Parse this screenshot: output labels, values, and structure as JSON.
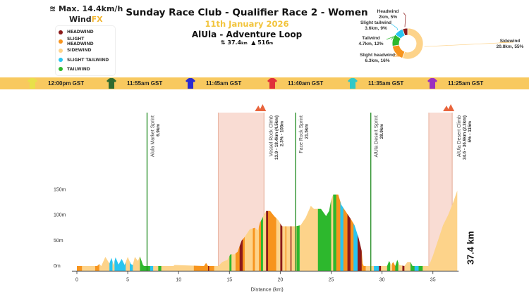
{
  "header": {
    "max_wind": "Max. 14.4km/h",
    "brand_main": "Wind",
    "brand_accent": "FX",
    "title": "Sunday Race Club - Qualifier Race 2 - Women",
    "date": "11th January 2026",
    "route": "AlUla - Adventure Loop",
    "distance": "37.4",
    "distance_unit": "km",
    "elevation": "516",
    "elevation_unit": "m"
  },
  "legend": [
    {
      "label": "HEADWIND",
      "color": "#8b1a1a"
    },
    {
      "label": "SLIGHT HEADWIND",
      "color": "#f7941d"
    },
    {
      "label": "SIDEWIND",
      "color": "#fdd38a"
    },
    {
      "label": "SLIGHT TAILWIND",
      "color": "#29c5f0"
    },
    {
      "label": "TAILWIND",
      "color": "#2db82d"
    }
  ],
  "jerseys": [
    {
      "time": "12:00pm GST",
      "color": "#e8e04a"
    },
    {
      "time": "11:55am GST",
      "color": "#2f6b2f"
    },
    {
      "time": "11:45am GST",
      "color": "#2a2ad0"
    },
    {
      "time": "11:40am GST",
      "color": "#e0303a"
    },
    {
      "time": "11:35am GST",
      "color": "#30c8c8"
    },
    {
      "time": "11:25am GST",
      "color": "#9a30c0"
    }
  ],
  "pie": {
    "type": "pie",
    "slices": [
      {
        "name": "Sidewind",
        "km": 20.8,
        "pct": 55,
        "label1": "Sidewind",
        "label2": "20.8km, 55%",
        "color": "#fdd38a"
      },
      {
        "name": "Slight headwind",
        "km": 6.3,
        "pct": 16,
        "label1": "Slight headwind",
        "label2": "6.3km, 16%",
        "color": "#f7941d"
      },
      {
        "name": "Tailwind",
        "km": 4.7,
        "pct": 12,
        "label1": "Tailwind",
        "label2": "4.7km, 12%",
        "color": "#2db82d"
      },
      {
        "name": "Slight tailwind",
        "km": 3.6,
        "pct": 9,
        "label1": "Slight tailwind",
        "label2": "3.6km, 9%",
        "color": "#29c5f0"
      },
      {
        "name": "Headwind",
        "km": 2,
        "pct": 5,
        "label1": "Headwind",
        "label2": "2km, 5%",
        "color": "#8b1a1a"
      }
    ]
  },
  "chart_data": {
    "type": "area",
    "xlabel": "Distance (km)",
    "xlim": [
      0,
      37.4
    ],
    "ylim": [
      -10,
      160
    ],
    "xticks": [
      "0",
      "5",
      "10",
      "15",
      "20",
      "25",
      "30",
      "35"
    ],
    "yticks": [
      "0m",
      "50m",
      "100m",
      "150m"
    ],
    "total_label": "37.4 km",
    "profile": [
      [
        0,
        0
      ],
      [
        2,
        0
      ],
      [
        2.2,
        4
      ],
      [
        2.4,
        0
      ],
      [
        2.8,
        18
      ],
      [
        3.2,
        5
      ],
      [
        3.4,
        16
      ],
      [
        3.6,
        2
      ],
      [
        3.8,
        17
      ],
      [
        4.1,
        3
      ],
      [
        4.4,
        14
      ],
      [
        4.7,
        2
      ],
      [
        5,
        18
      ],
      [
        5.3,
        4
      ],
      [
        5.5,
        2
      ],
      [
        5.7,
        18
      ],
      [
        6,
        10
      ],
      [
        6.2,
        19
      ],
      [
        6.5,
        2
      ],
      [
        6.6,
        0
      ],
      [
        9.5,
        0
      ],
      [
        9.6,
        2
      ],
      [
        12.5,
        0
      ],
      [
        12.7,
        6
      ],
      [
        12.9,
        0
      ],
      [
        13.9,
        0
      ],
      [
        14.3,
        8
      ],
      [
        14.8,
        12
      ],
      [
        15.1,
        23
      ],
      [
        15.5,
        23
      ],
      [
        15.8,
        28
      ],
      [
        16.2,
        50
      ],
      [
        16.5,
        57
      ],
      [
        17,
        72
      ],
      [
        17.5,
        75
      ],
      [
        17.8,
        70
      ],
      [
        18,
        85
      ],
      [
        18.4,
        100
      ],
      [
        18.6,
        108
      ],
      [
        19,
        108
      ],
      [
        19.4,
        98
      ],
      [
        19.8,
        90
      ],
      [
        20.1,
        80
      ],
      [
        20.2,
        78
      ],
      [
        21.5,
        78
      ],
      [
        22,
        80
      ],
      [
        22.5,
        95
      ],
      [
        23,
        118
      ],
      [
        23.3,
        112
      ],
      [
        24,
        112
      ],
      [
        24.5,
        98
      ],
      [
        24.8,
        108
      ],
      [
        25,
        130
      ],
      [
        25.2,
        140
      ],
      [
        25.7,
        140
      ],
      [
        26,
        120
      ],
      [
        26.5,
        105
      ],
      [
        27,
        90
      ],
      [
        27.3,
        80
      ],
      [
        27.7,
        55
      ],
      [
        28,
        30
      ],
      [
        28.1,
        5
      ],
      [
        28.2,
        0
      ],
      [
        30.5,
        0
      ],
      [
        30.7,
        10
      ],
      [
        30.9,
        2
      ],
      [
        31.1,
        8
      ],
      [
        31.3,
        0
      ],
      [
        31.5,
        12
      ],
      [
        31.7,
        2
      ],
      [
        32.2,
        0
      ],
      [
        32.5,
        8
      ],
      [
        32.8,
        8
      ],
      [
        33,
        0
      ],
      [
        34.6,
        0
      ],
      [
        35,
        20
      ],
      [
        35.5,
        50
      ],
      [
        36,
        80
      ],
      [
        36.5,
        100
      ],
      [
        37,
        125
      ],
      [
        37.4,
        148
      ]
    ],
    "wind_segments": [
      [
        0,
        0.5,
        "SH"
      ],
      [
        0.5,
        1.8,
        "S"
      ],
      [
        1.8,
        2.2,
        "SH"
      ],
      [
        2.2,
        3.2,
        "S"
      ],
      [
        3.2,
        3.5,
        "ST"
      ],
      [
        3.5,
        3.7,
        "S"
      ],
      [
        3.7,
        4.8,
        "ST"
      ],
      [
        4.8,
        5.2,
        "S"
      ],
      [
        5.2,
        5.5,
        "ST"
      ],
      [
        5.5,
        6.2,
        "S"
      ],
      [
        6.2,
        7.2,
        "T"
      ],
      [
        7.2,
        7.5,
        "ST"
      ],
      [
        7.5,
        8.0,
        "S"
      ],
      [
        8.0,
        8.3,
        "T"
      ],
      [
        8.3,
        11.5,
        "S"
      ],
      [
        11.5,
        12.9,
        "SH"
      ],
      [
        12.9,
        13.0,
        "H"
      ],
      [
        13.0,
        13.5,
        "SH"
      ],
      [
        13.5,
        15.0,
        "S"
      ],
      [
        15.0,
        15.2,
        "T"
      ],
      [
        15.2,
        15.6,
        "S"
      ],
      [
        15.6,
        16.0,
        "SH"
      ],
      [
        16.0,
        16.3,
        "H"
      ],
      [
        16.3,
        16.5,
        "SH"
      ],
      [
        16.5,
        17.3,
        "S"
      ],
      [
        17.3,
        17.5,
        "SH"
      ],
      [
        17.5,
        17.9,
        "S"
      ],
      [
        17.9,
        18.1,
        "SH"
      ],
      [
        18.1,
        18.3,
        "T"
      ],
      [
        18.3,
        18.6,
        "S"
      ],
      [
        18.6,
        18.8,
        "H"
      ],
      [
        18.8,
        19.6,
        "SH"
      ],
      [
        19.6,
        20.0,
        "S"
      ],
      [
        20.0,
        20.2,
        "H"
      ],
      [
        20.2,
        20.5,
        "S"
      ],
      [
        20.5,
        20.6,
        "SH"
      ],
      [
        20.6,
        21.0,
        "S"
      ],
      [
        21.0,
        21.1,
        "H"
      ],
      [
        21.1,
        21.6,
        "S"
      ],
      [
        21.6,
        21.9,
        "T"
      ],
      [
        21.9,
        23.7,
        "S"
      ],
      [
        23.7,
        25.0,
        "T"
      ],
      [
        25.0,
        25.2,
        "S"
      ],
      [
        25.2,
        25.5,
        "T"
      ],
      [
        25.5,
        25.9,
        "SH"
      ],
      [
        25.9,
        26.2,
        "ST"
      ],
      [
        26.2,
        26.6,
        "SH"
      ],
      [
        26.6,
        26.9,
        "H"
      ],
      [
        26.9,
        27.2,
        "SH"
      ],
      [
        27.2,
        27.6,
        "ST"
      ],
      [
        27.6,
        28.0,
        "H"
      ],
      [
        28.0,
        28.4,
        "SH"
      ],
      [
        28.4,
        29.2,
        "S"
      ],
      [
        29.2,
        29.7,
        "ST"
      ],
      [
        29.7,
        29.9,
        "H"
      ],
      [
        29.9,
        30.5,
        "S"
      ],
      [
        30.5,
        30.8,
        "T"
      ],
      [
        30.8,
        31.0,
        "S"
      ],
      [
        31.0,
        31.3,
        "SH"
      ],
      [
        31.3,
        31.6,
        "T"
      ],
      [
        31.6,
        32.0,
        "S"
      ],
      [
        32.0,
        32.2,
        "H"
      ],
      [
        32.2,
        32.8,
        "S"
      ],
      [
        32.8,
        33.2,
        "T"
      ],
      [
        33.2,
        33.6,
        "ST"
      ],
      [
        33.6,
        34.0,
        "T"
      ],
      [
        34.0,
        37.4,
        "S"
      ]
    ],
    "wind_colors": {
      "H": "#8b1a1a",
      "SH": "#f7941d",
      "S": "#fdd38a",
      "ST": "#29c5f0",
      "T": "#2db82d"
    },
    "sprints": [
      {
        "km": 6.9,
        "name": "Alula Market Sprint",
        "detail": "6.9km"
      },
      {
        "km": 21.5,
        "name": "Face Rock Sprint",
        "detail": "21.5km"
      },
      {
        "km": 28.9,
        "name": "AlUla Desert Sprint",
        "detail": "28.9km"
      }
    ],
    "climbs": [
      {
        "start": 13.9,
        "end": 18.4,
        "name": "Vessel Rock Climb",
        "detail1": "13.9 - 18.4km (4.5km)",
        "detail2": "2.3% - 105m"
      },
      {
        "start": 34.6,
        "end": 36.9,
        "name": "AlUla Desert Climb",
        "detail1": "34.6 - 36.9km (2.3km)",
        "detail2": "5% - 115m"
      }
    ]
  }
}
